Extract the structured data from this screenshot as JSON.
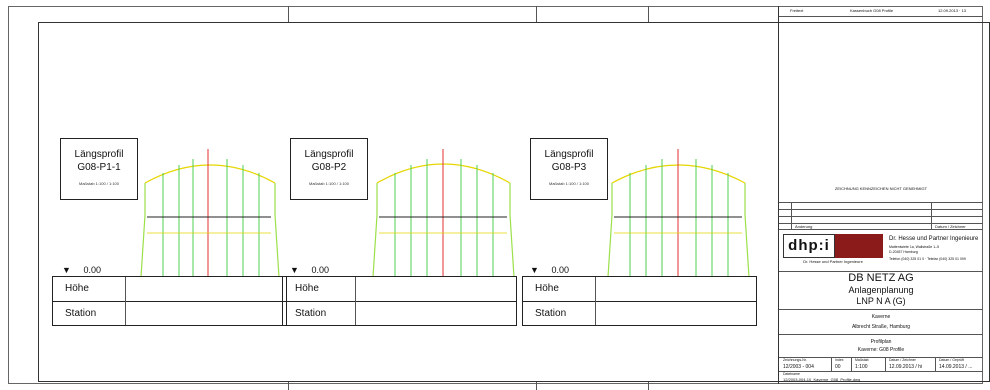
{
  "header": {
    "col1": "Freitext",
    "col2": "Kassenbuch G08 Profile",
    "col3": "12.09.2013 · 13"
  },
  "profiles": [
    {
      "title": "Längsprofil",
      "id": "G08-P1-1",
      "scale": "Maßstab 1:100 / 1:100",
      "datum": "0.00",
      "row1": "Höhe",
      "row2": "Station"
    },
    {
      "title": "Längsprofil",
      "id": "G08-P2",
      "scale": "Maßstab 1:100 / 1:100",
      "datum": "0.00",
      "row1": "Höhe",
      "row2": "Station"
    },
    {
      "title": "Längsprofil",
      "id": "G08-P3",
      "scale": "Maßstab 1:100 / 1:100",
      "datum": "0.00",
      "row1": "Höhe",
      "row2": "Station"
    }
  ],
  "title_block": {
    "note": "ZEICHNUNG KENNZEICHEN NICHT GENEHMIGT",
    "revision_header": "Änderung",
    "revision_header2": "Datum / Zeichner",
    "logo_text": "dhp:i",
    "logo_sub": "Dr. Hesse und Partner Ingenieure",
    "company_name": "Dr. Hesse und Partner Ingenieure",
    "company_addr1": "Mattentwiete 1a, Wallstraße 1–5",
    "company_addr2": "D-20457 Hamburg",
    "company_contact": "Telefon (040) 325 01 0 · Telefax (040) 325 01 099",
    "client": "DB NETZ AG",
    "project1": "Anlagenplanung",
    "project2": "LNP N A (G)",
    "location1": "Kaverne",
    "location2": "Albrecht Straße, Hamburg",
    "drawing1": "Profilplan",
    "drawing2": "Kaverne: G08 Profile",
    "meta_labels": [
      "Zeichnungs-Nr.",
      "Index",
      "Maßstab",
      "Datum / Zeichner",
      "Datum / Geprüft"
    ],
    "meta_values": [
      "12/2003 - 004",
      "00",
      "1:100",
      "12.09.2013 / hi",
      "14.09.2013 / ..."
    ],
    "file_label": "Dateiname",
    "file_value": "12/2003-004-10_Kaverne_G08_Profile.dwg"
  }
}
